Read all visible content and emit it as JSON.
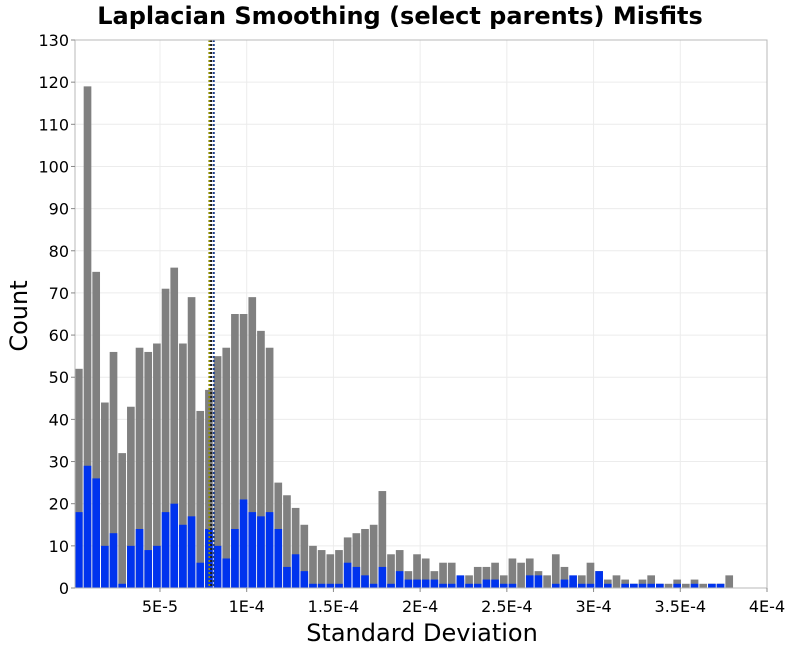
{
  "chart_data": {
    "type": "bar",
    "title": "Laplacian Smoothing (select parents) Misfits",
    "xlabel": "Standard Deviation",
    "ylabel": "Count",
    "xlim": [
      1e-06,
      0.0004
    ],
    "ylim": [
      0,
      130
    ],
    "bin_width": 5e-06,
    "x_ticks": [
      {
        "value": 5e-05,
        "label": "5E-5"
      },
      {
        "value": 0.0001,
        "label": "1E-4"
      },
      {
        "value": 0.00015,
        "label": "1.5E-4"
      },
      {
        "value": 0.0002,
        "label": "2E-4"
      },
      {
        "value": 0.00025,
        "label": "2.5E-4"
      },
      {
        "value": 0.0003,
        "label": "3E-4"
      },
      {
        "value": 0.00035,
        "label": "3.5E-4"
      },
      {
        "value": 0.0004,
        "label": "4E-4"
      }
    ],
    "y_ticks": [
      0,
      10,
      20,
      30,
      40,
      50,
      60,
      70,
      80,
      90,
      100,
      110,
      120,
      130
    ],
    "grid": true,
    "legend": "none",
    "series": [
      {
        "color": "#808080",
        "x_start": 1e-06,
        "values": [
          52,
          119,
          75,
          44,
          56,
          32,
          43,
          57,
          56,
          58,
          71,
          76,
          58,
          69,
          42,
          47,
          55,
          57,
          65,
          65,
          69,
          61,
          57,
          25,
          22,
          19,
          15,
          10,
          9,
          8,
          9,
          12,
          13,
          14,
          15,
          23,
          8,
          9,
          4,
          8,
          7,
          4,
          6,
          6,
          2,
          3,
          5,
          5,
          6,
          3,
          7,
          6,
          7,
          4,
          3,
          8,
          5,
          1,
          3,
          6,
          4,
          2,
          3,
          2,
          1,
          2,
          3,
          1,
          1,
          2,
          1,
          2,
          1,
          1,
          1,
          3
        ]
      },
      {
        "color": "#0033ee",
        "x_start": 1e-06,
        "values": [
          18,
          29,
          26,
          10,
          13,
          1,
          10,
          14,
          9,
          10,
          18,
          20,
          15,
          17,
          6,
          14,
          10,
          7,
          14,
          21,
          18,
          17,
          18,
          14,
          5,
          8,
          4,
          1,
          1,
          1,
          1,
          6,
          5,
          3,
          1,
          5,
          1,
          4,
          2,
          2,
          2,
          2,
          1,
          1,
          3,
          1,
          1,
          2,
          2,
          1,
          1,
          0,
          3,
          3,
          0,
          1,
          2,
          3,
          1,
          1,
          4,
          1,
          0,
          1,
          1,
          1,
          1,
          1,
          0,
          1,
          0,
          1,
          0,
          1,
          1,
          0
        ]
      }
    ],
    "reference_lines": [
      {
        "value": 7.85e-05,
        "color": "#8c8a00",
        "style": "dotted"
      },
      {
        "value": 7.95e-05,
        "color": "#1a1a1a",
        "style": "dotted"
      },
      {
        "value": 8.1e-05,
        "color": "#1e3f8f",
        "style": "dotted"
      }
    ]
  }
}
